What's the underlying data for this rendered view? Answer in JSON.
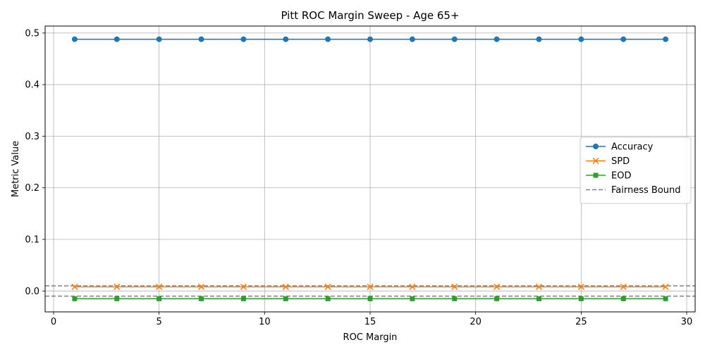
{
  "chart_data": {
    "type": "line",
    "title": "Pitt ROC Margin Sweep - Age 65+",
    "xlabel": "ROC Margin",
    "ylabel": "Metric Value",
    "xlim": [
      -0.4,
      30.4
    ],
    "ylim": [
      -0.0405,
      0.5135
    ],
    "xticks": [
      0,
      5,
      10,
      15,
      20,
      25,
      30
    ],
    "yticks": [
      0.0,
      0.1,
      0.2,
      0.3,
      0.4,
      0.5
    ],
    "ytick_labels": [
      "0.0",
      "0.1",
      "0.2",
      "0.3",
      "0.4",
      "0.5"
    ],
    "grid": true,
    "legend_position": "center-right",
    "x": [
      1,
      3,
      5,
      7,
      9,
      11,
      13,
      15,
      17,
      19,
      21,
      23,
      25,
      27,
      29
    ],
    "series": [
      {
        "name": "Accuracy",
        "color": "#1f77b4",
        "marker": "circle",
        "values": [
          0.488,
          0.488,
          0.488,
          0.488,
          0.488,
          0.488,
          0.488,
          0.488,
          0.488,
          0.488,
          0.488,
          0.488,
          0.488,
          0.488,
          0.488
        ]
      },
      {
        "name": "SPD",
        "color": "#ff7f0e",
        "marker": "x",
        "values": [
          0.008,
          0.008,
          0.008,
          0.008,
          0.008,
          0.008,
          0.008,
          0.008,
          0.008,
          0.008,
          0.008,
          0.008,
          0.008,
          0.008,
          0.008
        ]
      },
      {
        "name": "EOD",
        "color": "#2ca02c",
        "marker": "square",
        "values": [
          -0.015,
          -0.015,
          -0.015,
          -0.015,
          -0.015,
          -0.015,
          -0.015,
          -0.015,
          -0.015,
          -0.015,
          -0.015,
          -0.015,
          -0.015,
          -0.015,
          -0.015
        ]
      }
    ],
    "reference_lines": [
      {
        "name": "Fairness Bound",
        "color": "#808080",
        "style": "dashed",
        "y": [
          0.01,
          -0.01
        ]
      }
    ]
  }
}
